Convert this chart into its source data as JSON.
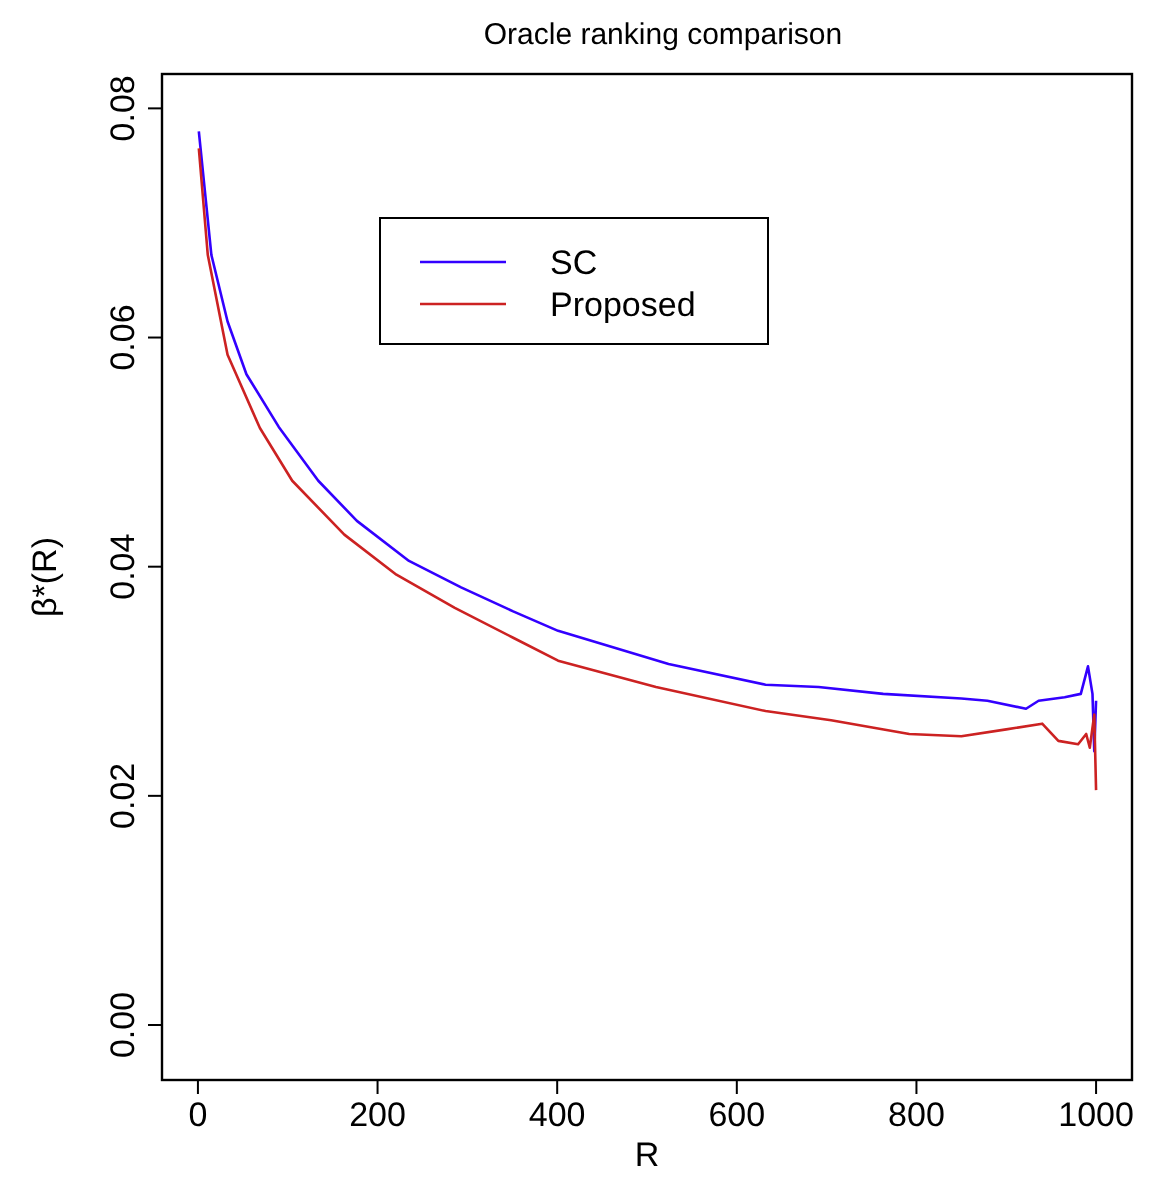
{
  "chart_data": {
    "type": "line",
    "title": "Oracle ranking comparison",
    "xlabel": "R",
    "ylabel": "β*(R)",
    "xlim": [
      -40,
      1040
    ],
    "ylim": [
      -0.0048,
      0.083
    ],
    "xticks": [
      0,
      200,
      400,
      600,
      800,
      1000
    ],
    "yticks": [
      {
        "value": 0,
        "label": "0.00"
      },
      {
        "value": 0.02,
        "label": "0.02"
      },
      {
        "value": 0.04,
        "label": "0.04"
      },
      {
        "value": 0.06,
        "label": "0.06"
      },
      {
        "value": 0.08,
        "label": "0.08"
      }
    ],
    "grid": false,
    "legend": "top",
    "marker": "none",
    "line_style": "solid",
    "series": [
      {
        "name": "SC",
        "color": "#3300ff",
        "x": [
          1,
          15,
          33,
          54,
          90,
          134,
          177,
          235,
          293,
          351,
          401,
          524,
          632,
          691,
          763,
          850,
          879,
          922,
          936,
          965,
          983,
          991,
          996,
          998,
          1000
        ],
        "values": [
          0.078,
          0.0672,
          0.0614,
          0.0568,
          0.0522,
          0.0475,
          0.044,
          0.0405,
          0.0382,
          0.0361,
          0.0344,
          0.0315,
          0.0297,
          0.0295,
          0.0289,
          0.0285,
          0.0283,
          0.0276,
          0.0283,
          0.0286,
          0.0289,
          0.0313,
          0.0289,
          0.0239,
          0.0283
        ]
      },
      {
        "name": "Proposed",
        "color": "#cc2222",
        "x": [
          1,
          11,
          33,
          69,
          105,
          163,
          221,
          286,
          351,
          401,
          510,
          632,
          705,
          792,
          850,
          900,
          940,
          958,
          980,
          989,
          993,
          998,
          1000
        ],
        "values": [
          0.0765,
          0.0672,
          0.0585,
          0.0521,
          0.0475,
          0.0428,
          0.0393,
          0.0364,
          0.0338,
          0.0318,
          0.0295,
          0.0274,
          0.0266,
          0.0254,
          0.0252,
          0.0258,
          0.0263,
          0.0248,
          0.0245,
          0.0254,
          0.0242,
          0.0271,
          0.0205
        ]
      }
    ]
  }
}
